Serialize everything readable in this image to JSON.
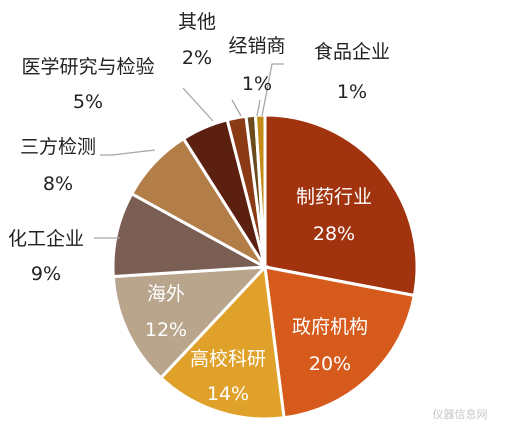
{
  "chart_data": {
    "type": "pie",
    "title": "",
    "slices": [
      {
        "label": "制药行业",
        "value": 28,
        "value_label": "28%",
        "color": "#a1330f"
      },
      {
        "label": "政府机构",
        "value": 20,
        "value_label": "20%",
        "color": "#d65a1c"
      },
      {
        "label": "高校科研",
        "value": 14,
        "value_label": "14%",
        "color": "#e0a12b"
      },
      {
        "label": "海外",
        "value": 12,
        "value_label": "12%",
        "color": "#b8a58c"
      },
      {
        "label": "化工企业",
        "value": 9,
        "value_label": "9%",
        "color": "#7b5e53"
      },
      {
        "label": "三方检测",
        "value": 8,
        "value_label": "8%",
        "color": "#b37d48"
      },
      {
        "label": "医学研究与检验",
        "value": 5,
        "value_label": "5%",
        "color": "#5b2010"
      },
      {
        "label": "其他",
        "value": 2,
        "value_label": "2%",
        "color": "#8a3a14"
      },
      {
        "label": "经销商",
        "value": 1,
        "value_label": "1%",
        "color": "#6b4a1d"
      },
      {
        "label": "食品企业",
        "value": 1,
        "value_label": "1%",
        "color": "#c38a1a"
      }
    ]
  },
  "watermark": "仪器信息网"
}
